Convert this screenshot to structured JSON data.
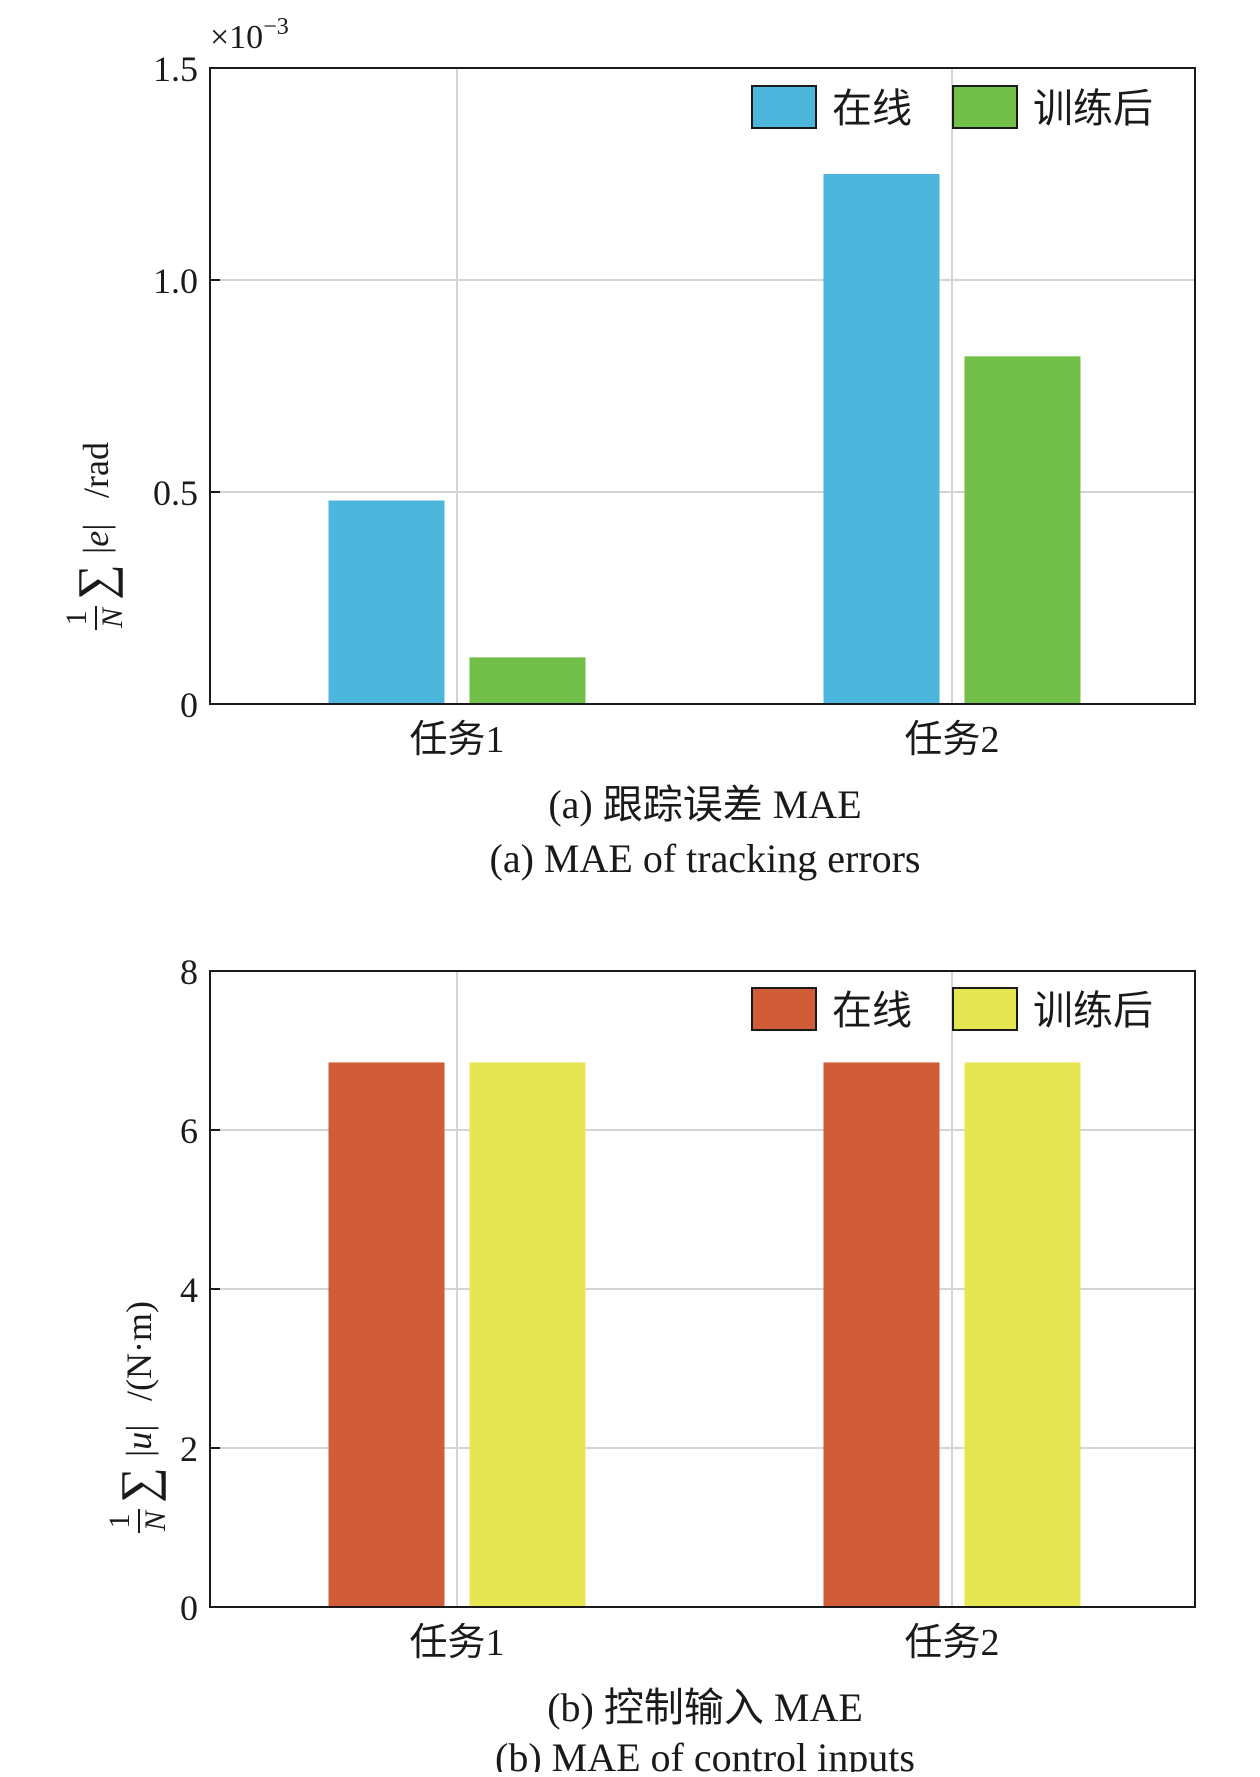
{
  "chart_data": [
    {
      "type": "bar",
      "categories": [
        "任务1",
        "任务2"
      ],
      "series": [
        {
          "name": "在线",
          "values": [
            0.48,
            1.25
          ],
          "color": "#4db6dc"
        },
        {
          "name": "训练后",
          "values": [
            0.11,
            0.82
          ],
          "color": "#72bf4a"
        }
      ],
      "ylim": [
        0,
        1.5
      ],
      "yticks": [
        0,
        0.5,
        1.0,
        1.5
      ],
      "ytick_labels": [
        "0",
        "0.5",
        "1.0",
        "1.5"
      ],
      "y_exponent": "×10",
      "y_exponent_power": "−3",
      "ylabel": {
        "frac_num": "1",
        "frac_den": "N",
        "sigma": "∑",
        "var": "e",
        "unit": "/rad"
      },
      "grid": true,
      "legend_position": "top-right",
      "caption_cn": "(a) 跟踪误差 MAE",
      "caption_en": "(a) MAE of tracking errors"
    },
    {
      "type": "bar",
      "categories": [
        "任务1",
        "任务2"
      ],
      "series": [
        {
          "name": "在线",
          "values": [
            6.85,
            6.85
          ],
          "color": "#d05c38"
        },
        {
          "name": "训练后",
          "values": [
            6.85,
            6.85
          ],
          "color": "#e6e652"
        }
      ],
      "ylim": [
        0,
        8
      ],
      "yticks": [
        0,
        2,
        4,
        6,
        8
      ],
      "ytick_labels": [
        "0",
        "2",
        "4",
        "6",
        "8"
      ],
      "ylabel": {
        "frac_num": "1",
        "frac_den": "N",
        "sigma": "∑",
        "var": "u",
        "unit": "/(N·m)"
      },
      "grid": true,
      "legend_position": "top-right",
      "caption_cn": "(b) 控制输入 MAE",
      "caption_en": "(b) MAE of control inputs"
    }
  ]
}
